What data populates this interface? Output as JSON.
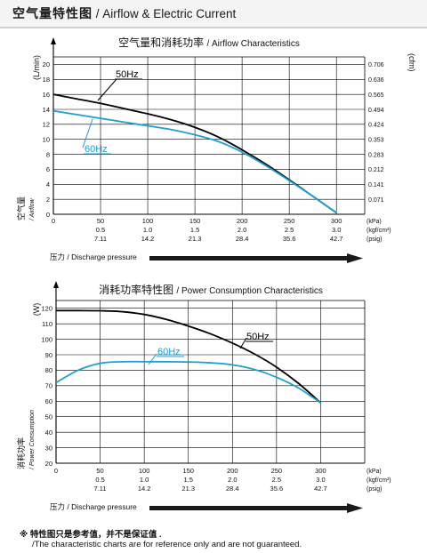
{
  "header": {
    "title_zh": "空气量特性图",
    "title_en": "/ Airflow & Electric Current"
  },
  "colors": {
    "line_50hz": "#000000",
    "line_60hz": "#1ba0d0",
    "axis": "#000000",
    "grid": "#000000",
    "arrow": "#1a1a1a"
  },
  "footnote": {
    "zh": "※ 特性图只是参考值，并不是保证值 .",
    "en": "/The characteristic charts are for reference only and are not guaranteed."
  },
  "chart_data": [
    {
      "type": "line",
      "title_zh": "空气量和消耗功率",
      "title_en": "/ Airflow Characteristics",
      "ylabel_unit": "(L/min)",
      "ylabel_zh": "空气量",
      "ylabel_en": "/ Airflow",
      "y2label": "(cfm)",
      "ylim": [
        0,
        21
      ],
      "y_ticks": [
        "0",
        "2",
        "4",
        "6",
        "8",
        "10",
        "12",
        "14",
        "16",
        "18",
        "20"
      ],
      "y2_ticks": [
        "0.071",
        "0.141",
        "0.212",
        "0.283",
        "0.353",
        "0.424",
        "0.494",
        "0.565",
        "0.636",
        "0.706"
      ],
      "xlim": [
        0,
        330
      ],
      "x_ticks_kpa": [
        "0",
        "50",
        "100",
        "150",
        "200",
        "250",
        "300"
      ],
      "x_ticks_kgf": [
        "0.5",
        "1.0",
        "1.5",
        "2.0",
        "2.5",
        "3.0"
      ],
      "x_ticks_psig": [
        "7.11",
        "14.2",
        "21.3",
        "28.4",
        "35.6",
        "42.7"
      ],
      "x_units": [
        "(kPa)",
        "(kgf/cm²)",
        "(psig)"
      ],
      "xlabel": "压力 / Discharge pressure",
      "grid": true,
      "series": [
        {
          "name": "50Hz",
          "x": [
            0,
            25,
            50,
            75,
            100,
            125,
            150,
            175,
            200,
            225,
            250,
            275,
            300
          ],
          "y": [
            16.0,
            15.4,
            14.8,
            14.1,
            13.4,
            12.6,
            11.6,
            10.3,
            8.6,
            6.7,
            4.6,
            2.4,
            0.2
          ]
        },
        {
          "name": "60Hz",
          "x": [
            0,
            25,
            50,
            75,
            100,
            125,
            150,
            175,
            200,
            225,
            250,
            275,
            300
          ],
          "y": [
            13.8,
            13.3,
            12.8,
            12.3,
            11.8,
            11.3,
            10.6,
            9.7,
            8.3,
            6.5,
            4.5,
            2.4,
            0.2
          ]
        }
      ]
    },
    {
      "type": "line",
      "title_zh": "消耗功率特性图",
      "title_en": "/ Power Consumption Characteristics",
      "ylabel_unit": "(W)",
      "ylabel_zh": "消耗功率",
      "ylabel_en": "/ Power Consumption",
      "ylim": [
        20,
        125
      ],
      "y_ticks": [
        "20",
        "30",
        "40",
        "50",
        "60",
        "70",
        "80",
        "90",
        "100",
        "110",
        "120"
      ],
      "xlim": [
        0,
        350
      ],
      "x_ticks_kpa": [
        "0",
        "50",
        "100",
        "150",
        "200",
        "250",
        "300"
      ],
      "x_ticks_kgf": [
        "0.5",
        "1.0",
        "1.5",
        "2.0",
        "2.5",
        "3.0"
      ],
      "x_ticks_psig": [
        "7.11",
        "14.2",
        "21.3",
        "28.4",
        "35.6",
        "42.7"
      ],
      "x_units": [
        "(kPa)",
        "(kgf/cm²)",
        "(psig)"
      ],
      "xlabel": "压力 / Discharge pressure",
      "grid": true,
      "series": [
        {
          "name": "50Hz",
          "x": [
            0,
            25,
            50,
            75,
            100,
            125,
            150,
            175,
            200,
            225,
            250,
            275,
            300
          ],
          "y": [
            118.5,
            118.5,
            118.4,
            117.8,
            116.0,
            112.8,
            108.5,
            103.5,
            97.5,
            90.5,
            82.0,
            71.5,
            59.0
          ]
        },
        {
          "name": "60Hz",
          "x": [
            0,
            25,
            50,
            75,
            100,
            125,
            150,
            175,
            200,
            225,
            250,
            275,
            300
          ],
          "y": [
            72.0,
            80.0,
            84.5,
            85.5,
            85.5,
            85.5,
            85.3,
            84.8,
            83.5,
            80.5,
            75.5,
            68.5,
            59.0
          ]
        }
      ]
    }
  ]
}
